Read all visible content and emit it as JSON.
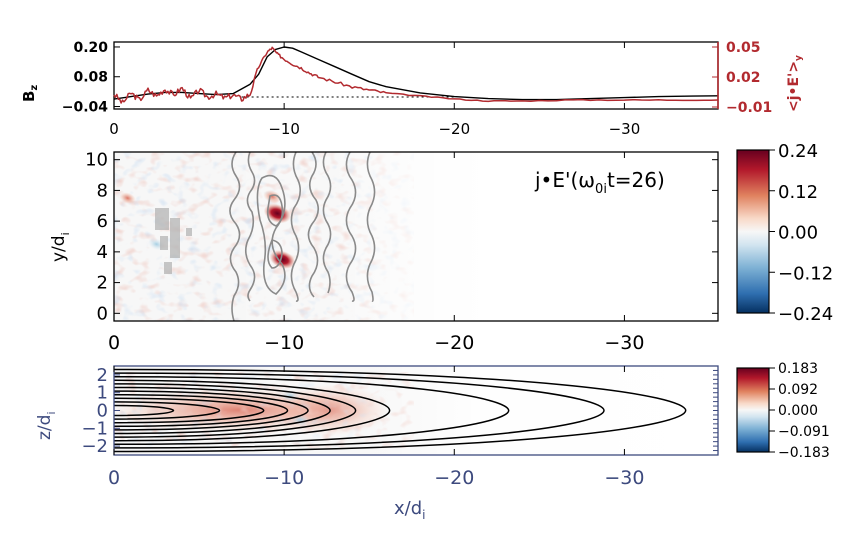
{
  "colors": {
    "axis": "#000000",
    "bz_line": "#000000",
    "je_line": "#b22a2f",
    "je_axis": "#b22a2f",
    "p3_axis": "#3d4a7e",
    "contour_gray": "#8a8a8a",
    "cb_red": "#67001f",
    "cb_blue": "#053061"
  },
  "chart_data": [
    {
      "type": "line",
      "panel": "top",
      "x_ticks": [
        "0",
        "−10",
        "−20",
        "−30"
      ],
      "x_tick_values": [
        0,
        -10,
        -20,
        -30
      ],
      "xlim": [
        0,
        -35.5
      ],
      "ylabel_left": "B",
      "ylabel_left_sub": "z",
      "ylabel_right": "<j•E'>",
      "ylabel_right_sub": "y",
      "left_ticks": [
        "0.20",
        "0.08",
        "−0.04"
      ],
      "left_tick_values": [
        0.2,
        0.08,
        -0.04
      ],
      "left_ylim": [
        -0.05,
        0.22
      ],
      "right_ticks": [
        "0.05",
        "0.02",
        "−0.01"
      ],
      "right_tick_values": [
        0.05,
        0.02,
        -0.01
      ],
      "right_ylim": [
        -0.012,
        0.055
      ],
      "series": [
        {
          "name": "Bz",
          "axis": "left",
          "x": [
            0,
            -1,
            -2,
            -3,
            -4,
            -5,
            -6,
            -7,
            -8,
            -8.5,
            -9,
            -9.5,
            -10,
            -10.5,
            -11,
            -11.5,
            -12,
            -13,
            -14,
            -15,
            -16,
            -18,
            -20,
            -22,
            -24,
            -26,
            -28,
            -30,
            -32,
            -34,
            -35.5
          ],
          "y": [
            -0.01,
            0.0,
            0.01,
            0.017,
            0.017,
            0.012,
            0.008,
            0.012,
            0.05,
            0.09,
            0.16,
            0.19,
            0.2,
            0.195,
            0.18,
            0.165,
            0.15,
            0.12,
            0.09,
            0.06,
            0.04,
            0.015,
            0.0,
            -0.008,
            -0.012,
            -0.012,
            -0.008,
            -0.004,
            0.0,
            0.002,
            0.003
          ]
        },
        {
          "name": "<j•E'>y",
          "axis": "right",
          "x": [
            0,
            -0.5,
            -1,
            -1.5,
            -2,
            -2.5,
            -3,
            -3.5,
            -4,
            -4.5,
            -5,
            -5.5,
            -6,
            -6.5,
            -7,
            -7.5,
            -8,
            -8.5,
            -9,
            -9.3,
            -9.6,
            -10,
            -10.5,
            -11,
            -11.5,
            -12,
            -13,
            -14,
            -15,
            -16,
            -18,
            -20,
            -22,
            -24,
            -27,
            -30,
            -33,
            -35.5
          ],
          "y": [
            0.003,
            -0.006,
            0.004,
            -0.003,
            0.007,
            0.001,
            0.008,
            0.002,
            0.009,
            -0.002,
            0.007,
            0.0,
            0.003,
            -0.001,
            0.002,
            -0.002,
            0.003,
            0.03,
            0.045,
            0.049,
            0.043,
            0.038,
            0.033,
            0.029,
            0.024,
            0.02,
            0.015,
            0.01,
            0.007,
            0.004,
            0.001,
            -0.002,
            -0.004,
            -0.004,
            -0.003,
            -0.003,
            -0.003,
            -0.003
          ]
        }
      ],
      "reference_line": {
        "axis": "right",
        "value": 0.0,
        "x_from": -7.5,
        "x_to": -20,
        "style": "dotted"
      }
    },
    {
      "type": "heatmap",
      "panel": "middle",
      "annotation": "j•E'(ω",
      "annotation_sub": "0i",
      "annotation_tail": "t=26)",
      "xlabel": "",
      "ylabel": "y/d",
      "ylabel_sub": "i",
      "x_ticks": [
        "0",
        "−10",
        "−20",
        "−30"
      ],
      "x_tick_values": [
        0,
        -10,
        -20,
        -30
      ],
      "y_ticks": [
        "0",
        "2",
        "4",
        "6",
        "8",
        "10"
      ],
      "y_tick_values": [
        0,
        2,
        4,
        6,
        8,
        10
      ],
      "xlim": [
        0,
        -35.5
      ],
      "ylim": [
        -0.5,
        10.5
      ],
      "colorbar_ticks": [
        "0.24",
        "0.12",
        "0.00",
        "−0.12",
        "−0.24"
      ],
      "colorbar_range": [
        -0.24,
        0.24
      ],
      "hotspots": [
        {
          "x": -9.6,
          "y": 6.5,
          "value": 0.24
        },
        {
          "x": -9.9,
          "y": 3.5,
          "value": 0.22
        },
        {
          "x": -9.3,
          "y": 7.6,
          "value": 0.1
        },
        {
          "x": -0.8,
          "y": 7.5,
          "value": 0.07
        },
        {
          "x": -2.5,
          "y": 4.5,
          "value": -0.08
        }
      ]
    },
    {
      "type": "heatmap",
      "panel": "bottom",
      "xlabel": "x/d",
      "xlabel_sub": "i",
      "ylabel": "z/d",
      "ylabel_sub": "i",
      "x_ticks": [
        "0",
        "−10",
        "−20",
        "−30"
      ],
      "x_tick_values": [
        0,
        -10,
        -20,
        -30
      ],
      "y_ticks": [
        "2",
        "1",
        "0",
        "−1",
        "−2"
      ],
      "y_tick_values": [
        2,
        1,
        0,
        -1,
        -2
      ],
      "xlim": [
        0,
        -35.5
      ],
      "ylim": [
        -2.5,
        2.5
      ],
      "colorbar_ticks": [
        "0.183",
        "0.092",
        "0.000",
        "−0.091",
        "−0.183"
      ],
      "colorbar_range": [
        -0.183,
        0.183
      ],
      "contour_tips": [
        -3.5,
        -6.2,
        -8.8,
        -10.2,
        -11.4,
        -12.7,
        -14.2,
        -16.2,
        -23.2,
        -28.8,
        -33.6
      ]
    }
  ]
}
